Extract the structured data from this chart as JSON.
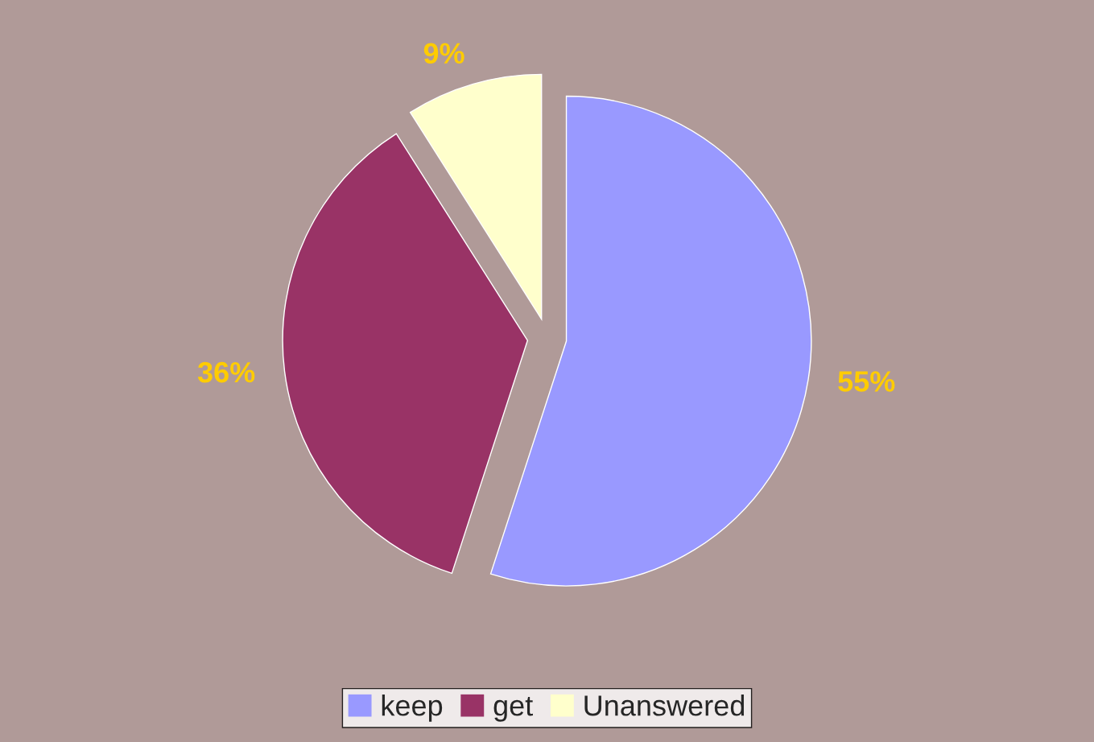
{
  "chart_data": {
    "type": "pie",
    "categories": [
      "keep",
      "get",
      "Unanswered"
    ],
    "values": [
      55,
      36,
      9
    ],
    "colors": [
      "#9999ff",
      "#993366",
      "#ffffcc"
    ],
    "value_labels": [
      "55%",
      "36%",
      "9%"
    ],
    "legend": "bottom"
  }
}
